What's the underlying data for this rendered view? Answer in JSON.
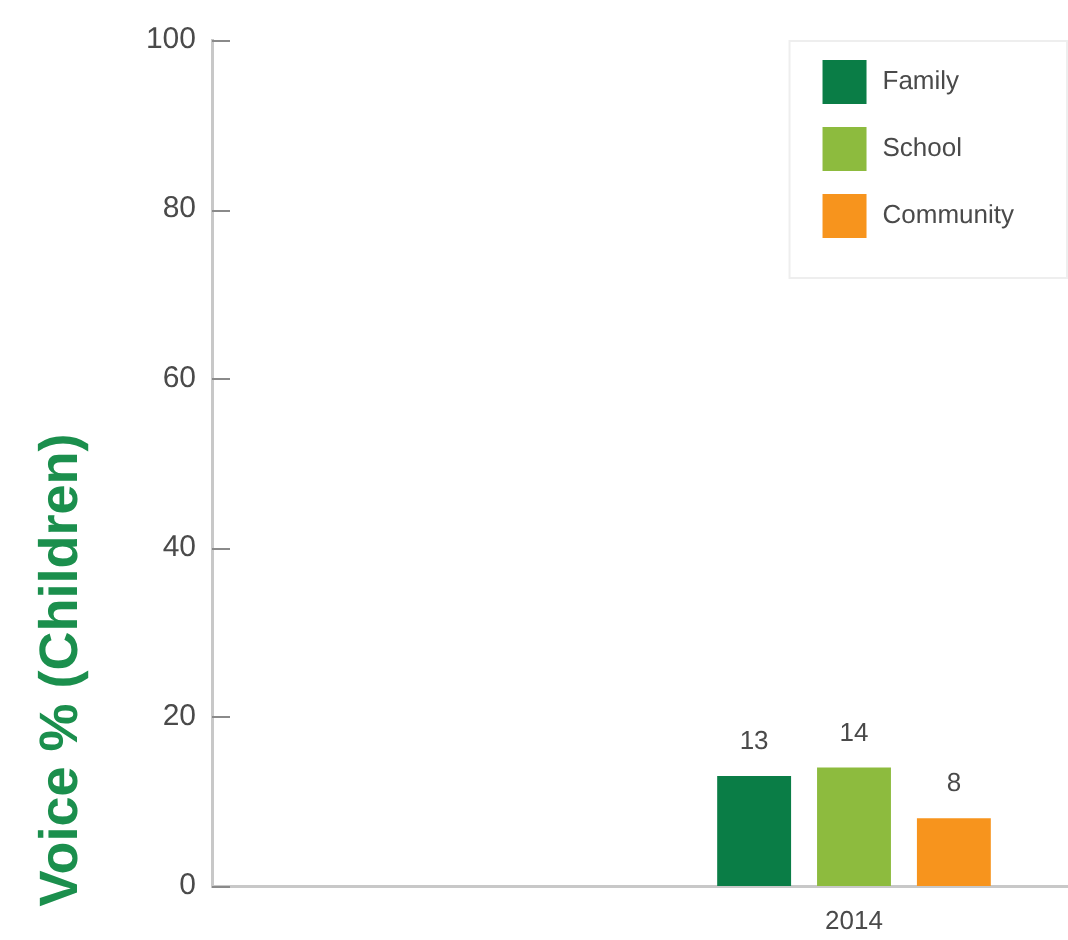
{
  "chart_data": {
    "type": "bar",
    "categories": [
      null,
      "2014"
    ],
    "series": [
      {
        "name": "Family",
        "color": "#0a7d46",
        "values": [
          null,
          13
        ]
      },
      {
        "name": "School",
        "color": "#8dbb3e",
        "values": [
          null,
          14
        ]
      },
      {
        "name": "Community",
        "color": "#f7941d",
        "values": [
          null,
          8
        ]
      }
    ],
    "ylabel": "Voice % (Children)",
    "ylim": [
      0,
      100
    ],
    "yticks": [
      0,
      20,
      40,
      60,
      80,
      100
    ],
    "legend": "top right",
    "data_labels": true
  }
}
